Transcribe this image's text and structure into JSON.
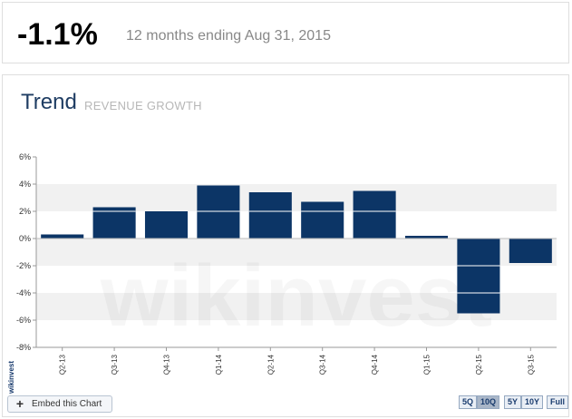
{
  "header": {
    "value": "-1.1%",
    "period": "12 months ending Aug 31, 2015"
  },
  "trend": {
    "title": "Trend",
    "subtitle": "REVENUE GROWTH"
  },
  "watermark": "wikinvest",
  "footer": {
    "embed_label": "Embed this Chart",
    "ranges": [
      "5Q",
      "10Q",
      "5Y",
      "10Y",
      "Full"
    ],
    "active_range": "10Q"
  },
  "colors": {
    "bar": "#0c3566",
    "band": "#f1f1f1",
    "grid": "#cccccc"
  },
  "chart_data": {
    "type": "bar",
    "categories": [
      "Q2-13",
      "Q3-13",
      "Q4-13",
      "Q1-14",
      "Q2-14",
      "Q3-14",
      "Q4-14",
      "Q1-15",
      "Q2-15",
      "Q3-15"
    ],
    "values": [
      0.3,
      2.3,
      2.0,
      3.9,
      3.4,
      2.7,
      3.5,
      0.2,
      -5.5,
      -1.8
    ],
    "ylim": [
      -8,
      6
    ],
    "yticks": [
      6,
      4,
      2,
      0,
      -2,
      -4,
      -6,
      -8
    ],
    "ytick_labels": [
      "6%",
      "4%",
      "2%",
      "0%",
      "-2%",
      "-4%",
      "-6%",
      "-8%"
    ],
    "grid": true
  }
}
